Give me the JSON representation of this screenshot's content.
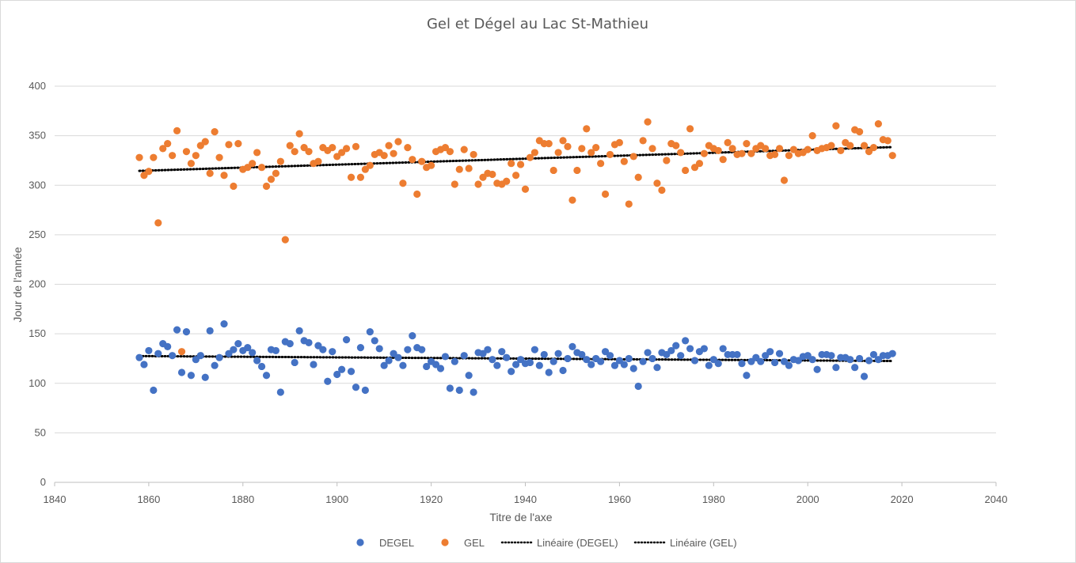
{
  "chart_data": {
    "type": "scatter",
    "title": "Gel et Dégel au Lac St-Mathieu",
    "xlabel": "Titre de l'axe",
    "ylabel": "Jour de l'année",
    "xlim": [
      1840,
      2040
    ],
    "ylim": [
      0,
      400
    ],
    "x_ticks": [
      "1840",
      "1860",
      "1880",
      "1900",
      "1920",
      "1940",
      "1960",
      "1980",
      "2000",
      "2020",
      "2040"
    ],
    "y_ticks": [
      "0",
      "50",
      "100",
      "150",
      "200",
      "250",
      "300",
      "350",
      "400"
    ],
    "grid": "horizontal",
    "legend_position": "bottom",
    "colors": {
      "degel": "#4472c4",
      "gel": "#ed7d31",
      "trend": "#000000",
      "grid": "#d9d9d9",
      "text": "#595959"
    },
    "series": [
      {
        "name": "DEGEL",
        "x": [
          1858,
          1859,
          1860,
          1861,
          1862,
          1863,
          1864,
          1865,
          1866,
          1867,
          1868,
          1869,
          1870,
          1871,
          1872,
          1873,
          1874,
          1875,
          1876,
          1877,
          1878,
          1879,
          1880,
          1881,
          1882,
          1883,
          1884,
          1885,
          1886,
          1887,
          1888,
          1889,
          1890,
          1891,
          1892,
          1893,
          1894,
          1895,
          1896,
          1897,
          1898,
          1899,
          1900,
          1901,
          1902,
          1903,
          1904,
          1905,
          1906,
          1907,
          1908,
          1909,
          1910,
          1911,
          1912,
          1913,
          1914,
          1915,
          1916,
          1917,
          1918,
          1919,
          1920,
          1921,
          1922,
          1923,
          1924,
          1925,
          1926,
          1927,
          1928,
          1929,
          1930,
          1931,
          1932,
          1933,
          1934,
          1935,
          1936,
          1937,
          1938,
          1939,
          1940,
          1941,
          1942,
          1943,
          1944,
          1945,
          1946,
          1947,
          1948,
          1949,
          1950,
          1951,
          1952,
          1953,
          1954,
          1955,
          1956,
          1957,
          1958,
          1959,
          1960,
          1961,
          1962,
          1963,
          1964,
          1965,
          1966,
          1967,
          1968,
          1969,
          1970,
          1971,
          1972,
          1973,
          1974,
          1975,
          1976,
          1977,
          1978,
          1979,
          1980,
          1981,
          1982,
          1983,
          1984,
          1985,
          1986,
          1987,
          1988,
          1989,
          1990,
          1991,
          1992,
          1993,
          1994,
          1995,
          1996,
          1997,
          1998,
          1999,
          2000,
          2001,
          2002,
          2003,
          2004,
          2005,
          2006,
          2007,
          2008,
          2009,
          2010,
          2011,
          2012,
          2013,
          2014,
          2015,
          2016,
          2017,
          2018
        ],
        "y": [
          126,
          119,
          133,
          93,
          130,
          140,
          137,
          128,
          154,
          111,
          152,
          108,
          124,
          128,
          106,
          153,
          118,
          126,
          160,
          130,
          134,
          140,
          133,
          136,
          131,
          123,
          117,
          108,
          134,
          133,
          91,
          142,
          140,
          121,
          153,
          143,
          141,
          119,
          138,
          134,
          102,
          132,
          109,
          114,
          144,
          112,
          96,
          136,
          93,
          152,
          143,
          135,
          118,
          123,
          130,
          126,
          118,
          134,
          148,
          136,
          134,
          117,
          122,
          119,
          115,
          127,
          95,
          122,
          93,
          128,
          108,
          91,
          131,
          130,
          134,
          124,
          118,
          132,
          126,
          112,
          119,
          124,
          120,
          121,
          134,
          118,
          129,
          111,
          122,
          130,
          113,
          125,
          137,
          131,
          129,
          124,
          119,
          125,
          122,
          132,
          128,
          118,
          123,
          119,
          125,
          115,
          97,
          122,
          131,
          125,
          116,
          131,
          129,
          133,
          138,
          128,
          143,
          135,
          123,
          132,
          135,
          118,
          124,
          120,
          135,
          129,
          129,
          129,
          120,
          108,
          122,
          126,
          122,
          128,
          132,
          121,
          130,
          122,
          118,
          124,
          123,
          127,
          128,
          124,
          114,
          129,
          129,
          128,
          116,
          126,
          126,
          124,
          116,
          125,
          107,
          123,
          129,
          124,
          128,
          128,
          130
        ]
      },
      {
        "name": "GEL",
        "x": [
          1858,
          1859,
          1860,
          1861,
          1862,
          1863,
          1864,
          1865,
          1866,
          1867,
          1868,
          1869,
          1870,
          1871,
          1872,
          1873,
          1874,
          1875,
          1876,
          1877,
          1878,
          1879,
          1880,
          1881,
          1882,
          1883,
          1884,
          1885,
          1886,
          1887,
          1888,
          1889,
          1890,
          1891,
          1892,
          1893,
          1894,
          1895,
          1896,
          1897,
          1898,
          1899,
          1900,
          1901,
          1902,
          1903,
          1904,
          1905,
          1906,
          1907,
          1908,
          1909,
          1910,
          1911,
          1912,
          1913,
          1914,
          1915,
          1916,
          1917,
          1918,
          1919,
          1920,
          1921,
          1922,
          1923,
          1924,
          1925,
          1926,
          1927,
          1928,
          1929,
          1930,
          1931,
          1932,
          1933,
          1934,
          1935,
          1936,
          1937,
          1938,
          1939,
          1940,
          1941,
          1942,
          1943,
          1944,
          1945,
          1946,
          1947,
          1948,
          1949,
          1950,
          1951,
          1952,
          1953,
          1954,
          1955,
          1956,
          1957,
          1958,
          1959,
          1960,
          1961,
          1962,
          1963,
          1964,
          1965,
          1966,
          1967,
          1968,
          1969,
          1970,
          1971,
          1972,
          1973,
          1974,
          1975,
          1976,
          1977,
          1978,
          1979,
          1980,
          1981,
          1982,
          1983,
          1984,
          1985,
          1986,
          1987,
          1988,
          1989,
          1990,
          1991,
          1992,
          1993,
          1994,
          1995,
          1996,
          1997,
          1998,
          1999,
          2000,
          2001,
          2002,
          2003,
          2004,
          2005,
          2006,
          2007,
          2008,
          2009,
          2010,
          2011,
          2012,
          2013,
          2014,
          2015,
          2016,
          2017,
          2018
        ],
        "y": [
          328,
          310,
          314,
          328,
          262,
          337,
          342,
          330,
          355,
          132,
          334,
          322,
          330,
          340,
          344,
          312,
          354,
          328,
          310,
          341,
          299,
          342,
          316,
          318,
          322,
          333,
          318,
          299,
          306,
          312,
          324,
          245,
          340,
          334,
          352,
          338,
          334,
          322,
          324,
          338,
          335,
          338,
          329,
          333,
          337,
          308,
          339,
          308,
          316,
          320,
          331,
          333,
          330,
          340,
          332,
          344,
          302,
          338,
          326,
          291,
          324,
          318,
          320,
          334,
          336,
          338,
          334,
          301,
          316,
          336,
          317,
          331,
          301,
          308,
          312,
          311,
          302,
          301,
          304,
          322,
          310,
          321,
          296,
          328,
          333,
          345,
          342,
          342,
          315,
          333,
          345,
          339,
          285,
          315,
          337,
          357,
          333,
          338,
          322,
          291,
          331,
          341,
          343,
          324,
          281,
          329,
          308,
          345,
          364,
          337,
          302,
          295,
          325,
          342,
          340,
          333,
          315,
          357,
          318,
          322,
          332,
          340,
          337,
          335,
          326,
          343,
          337,
          331,
          332,
          342,
          332,
          337,
          340,
          337,
          330,
          331,
          337,
          305,
          330,
          336,
          332,
          333,
          336,
          350,
          335,
          337,
          338,
          340,
          360,
          335,
          343,
          340,
          356,
          354,
          340,
          334,
          338,
          362,
          346,
          345,
          330
        ]
      },
      {
        "name": "Linéaire (DEGEL)",
        "x": [
          1858,
          2018
        ],
        "y": [
          127.5,
          122.5
        ]
      },
      {
        "name": "Linéaire (GEL)",
        "x": [
          1858,
          2018
        ],
        "y": [
          314.5,
          338.5
        ]
      }
    ]
  }
}
